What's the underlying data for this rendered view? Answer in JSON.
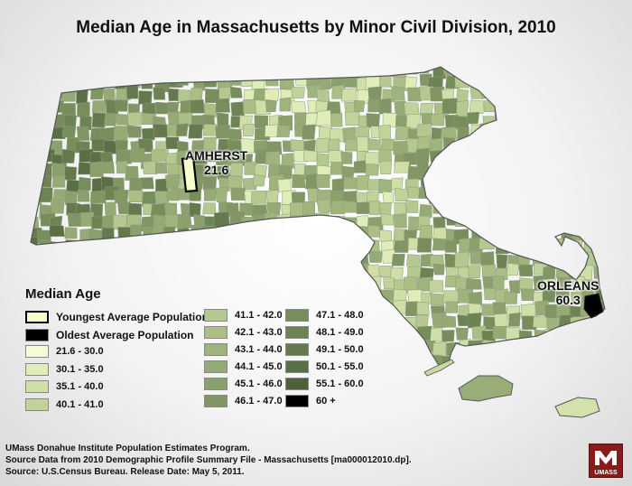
{
  "title": "Median Age in Massachusetts by Minor Civil Division, 2010",
  "callouts": {
    "youngest": {
      "name": "AMHERST",
      "value": "21.6"
    },
    "oldest": {
      "name": "ORLEANS",
      "value": "60.3"
    }
  },
  "legend": {
    "title": "Median Age",
    "highlights": [
      {
        "label": "Youngest Average Population",
        "color": "#f6ffcc"
      },
      {
        "label": "Oldest Average Population",
        "color": "#000000"
      }
    ],
    "classes": [
      {
        "label": "21.6 - 30.0",
        "color": "#f4fbd6"
      },
      {
        "label": "30.1 - 35.0",
        "color": "#e1edb9"
      },
      {
        "label": "35.1 - 40.0",
        "color": "#cfdfa7"
      },
      {
        "label": "40.1 - 41.0",
        "color": "#c1d29a"
      },
      {
        "label": "41.1 - 42.0",
        "color": "#b5c88f"
      },
      {
        "label": "42.1 - 43.0",
        "color": "#aabe86"
      },
      {
        "label": "43.1 - 44.0",
        "color": "#9fb47d"
      },
      {
        "label": "44.1 - 45.0",
        "color": "#95aa74"
      },
      {
        "label": "45.1 - 46.0",
        "color": "#8ba06c"
      },
      {
        "label": "46.1 - 47.0",
        "color": "#819664"
      },
      {
        "label": "47.1 - 48.0",
        "color": "#778d5c"
      },
      {
        "label": "48.1 - 49.0",
        "color": "#6d8354"
      },
      {
        "label": "49.1 - 50.0",
        "color": "#64794d"
      },
      {
        "label": "50.1 - 55.0",
        "color": "#5a6f45"
      },
      {
        "label": "55.1 - 60.0",
        "color": "#4e613b"
      },
      {
        "label": "60 +",
        "color": "#000000"
      }
    ]
  },
  "source_lines": [
    "UMass Donahue Institute Population Estimates Program.",
    "Source Data from 2010 Demographic Profile Summary File - Massachusetts [ma000012010.dp].",
    "Source: U.S.Census Bureau. Release Date: May 5, 2011."
  ],
  "logo_text": "UMASS"
}
